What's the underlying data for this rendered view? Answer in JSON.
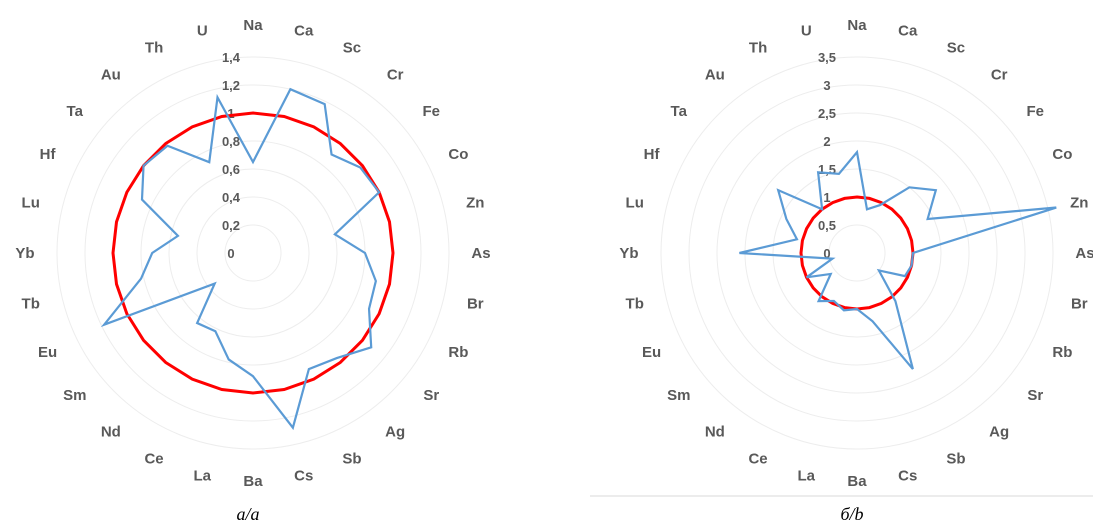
{
  "chart_data": [
    {
      "type": "radar",
      "caption": "а/а",
      "categories": [
        "Na",
        "Ca",
        "Sc",
        "Cr",
        "Fe",
        "Co",
        "Zn",
        "As",
        "Br",
        "Rb",
        "Sr",
        "Ag",
        "Sb",
        "Cs",
        "Ba",
        "La",
        "Ce",
        "Nd",
        "Sm",
        "Eu",
        "Tb",
        "Yb",
        "Lu",
        "Hf",
        "Ta",
        "Au",
        "Th",
        "U"
      ],
      "tick_labels": [
        "0",
        "0,2",
        "0,4",
        "0,6",
        "0,8",
        "1",
        "1,2",
        "1,4"
      ],
      "rlim": [
        0,
        1.4
      ],
      "grid": true,
      "legend": "none",
      "series": [
        {
          "color": "#5b9bd5",
          "values": [
            0.65,
            1.2,
            1.18,
            0.9,
            0.98,
            1.0,
            0.6,
            0.8,
            0.9,
            0.92,
            1.08,
            0.96,
            0.92,
            1.28,
            0.88,
            0.78,
            0.62,
            0.64,
            0.35,
            1.18,
            0.82,
            0.72,
            0.55,
            0.88,
            1.0,
            0.98,
            0.72,
            1.14
          ]
        },
        {
          "color": "#ff0000",
          "values": [
            1,
            1,
            1,
            1,
            1,
            1,
            1,
            1,
            1,
            1,
            1,
            1,
            1,
            1,
            1,
            1,
            1,
            1,
            1,
            1,
            1,
            1,
            1,
            1,
            1,
            1,
            1,
            1
          ]
        }
      ]
    },
    {
      "type": "radar",
      "caption": "б/b",
      "categories": [
        "Na",
        "Ca",
        "Sc",
        "Cr",
        "Fe",
        "Co",
        "Zn",
        "As",
        "Br",
        "Rb",
        "Sr",
        "Ag",
        "Sb",
        "Cs",
        "Ba",
        "La",
        "Ce",
        "Nd",
        "Sm",
        "Eu",
        "Tb",
        "Yb",
        "Lu",
        "Hf",
        "Ta",
        "Au",
        "Th",
        "U"
      ],
      "tick_labels": [
        "0",
        "0,5",
        "1",
        "1,5",
        "2",
        "2,5",
        "3",
        "3,5"
      ],
      "rlim": [
        0,
        3.5
      ],
      "grid": true,
      "legend": "none",
      "series": [
        {
          "color": "#5b9bd5",
          "values": [
            1.8,
            0.8,
            0.95,
            1.5,
            1.8,
            1.4,
            3.65,
            1.0,
            1.0,
            0.95,
            0.5,
            1.1,
            2.3,
            1.25,
            1.0,
            1.05,
            0.95,
            1.1,
            0.6,
            1.0,
            0.45,
            2.1,
            1.1,
            1.4,
            1.8,
            1.0,
            1.6,
            1.45
          ]
        },
        {
          "color": "#ff0000",
          "values": [
            1,
            1,
            1,
            1,
            1,
            1,
            1,
            1,
            1,
            1,
            1,
            1,
            1,
            1,
            1,
            1,
            1,
            1,
            1,
            1,
            1,
            1,
            1,
            1,
            1,
            1,
            1,
            1
          ]
        }
      ]
    }
  ]
}
